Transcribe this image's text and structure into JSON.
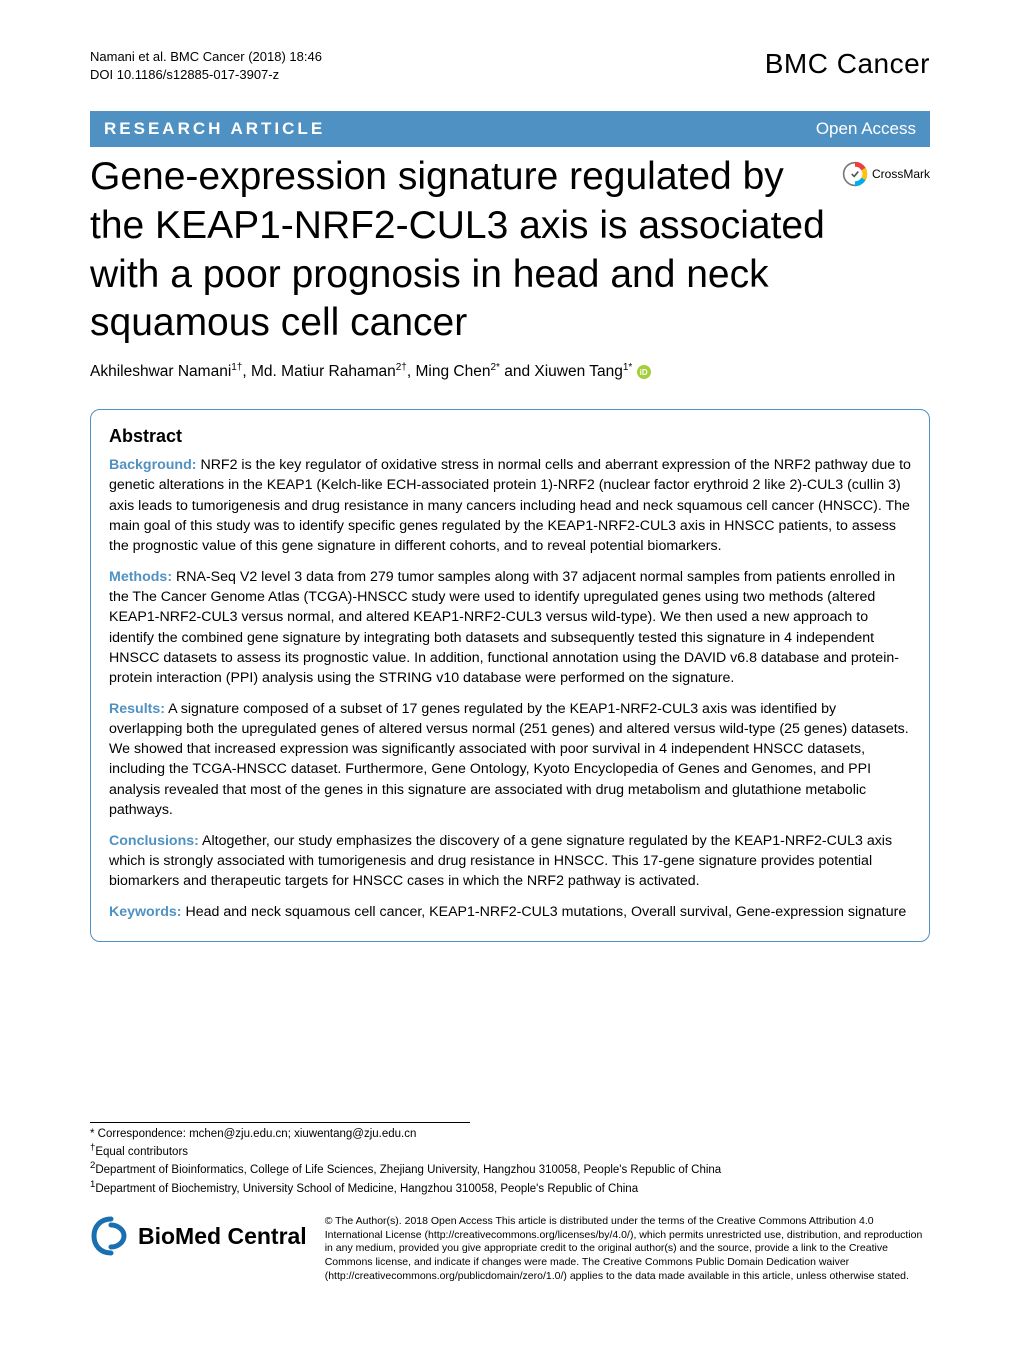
{
  "header": {
    "citation_line1": "Namani et al. BMC Cancer  (2018) 18:46 ",
    "citation_line2": "DOI 10.1186/s12885-017-3907-z",
    "journal_name": "BMC Cancer"
  },
  "section_bar": {
    "left": "RESEARCH ARTICLE",
    "right": "Open Access"
  },
  "crossmark_label": "CrossMark",
  "title": "Gene-expression signature regulated by the KEAP1-NRF2-CUL3 axis is associated with a poor prognosis in head and neck squamous cell cancer",
  "authors_html": "Akhileshwar Namani<sup>1†</sup>, Md. Matiur Rahaman<sup>2†</sup>, Ming Chen<sup>2*</sup> and Xiuwen Tang<sup>1*</sup>",
  "abstract": {
    "heading": "Abstract",
    "background_label": "Background:",
    "background_text": " NRF2 is the key regulator of oxidative stress in normal cells and aberrant expression of the NRF2 pathway due to genetic alterations in the KEAP1 (Kelch-like ECH-associated protein 1)-NRF2 (nuclear factor erythroid 2 like 2)-CUL3 (cullin 3) axis leads to tumorigenesis and drug resistance in many cancers including head and neck squamous cell cancer (HNSCC). The main goal of this study was to identify specific genes regulated by the KEAP1-NRF2-CUL3 axis in HNSCC patients, to assess the prognostic value of this gene signature in different cohorts, and to reveal potential biomarkers.",
    "methods_label": "Methods:",
    "methods_text": " RNA-Seq V2 level 3 data from 279 tumor samples along with 37 adjacent normal samples from patients enrolled in the The Cancer Genome Atlas (TCGA)-HNSCC study were used to identify upregulated genes using two methods (altered KEAP1-NRF2-CUL3 versus normal, and altered KEAP1-NRF2-CUL3 versus wild-type). We then used a new approach to identify the combined gene signature by integrating both datasets and subsequently tested this signature in 4 independent HNSCC datasets to assess its prognostic value. In addition, functional annotation using the DAVID v6.8 database and protein-protein interaction (PPI) analysis using the STRING v10 database were performed on the signature.",
    "results_label": "Results:",
    "results_text": " A signature composed of a subset of 17 genes regulated by the KEAP1-NRF2-CUL3 axis was identified by overlapping both the upregulated genes of altered versus normal (251 genes) and altered versus wild-type (25 genes) datasets. We showed that increased expression was significantly associated with poor survival in 4 independent HNSCC datasets, including the TCGA-HNSCC dataset. Furthermore, Gene Ontology, Kyoto Encyclopedia of Genes and Genomes, and PPI analysis revealed that most of the genes in this signature are associated with drug metabolism and glutathione metabolic pathways.",
    "conclusions_label": "Conclusions:",
    "conclusions_text": " Altogether, our study emphasizes the discovery of a gene signature regulated by the KEAP1-NRF2-CUL3 axis which is strongly associated with tumorigenesis and drug resistance in HNSCC. This 17-gene signature provides potential biomarkers and therapeutic targets for HNSCC cases in which the NRF2 pathway is activated.",
    "keywords_label": "Keywords:",
    "keywords_text": " Head and neck squamous cell cancer, KEAP1-NRF2-CUL3 mutations, Overall survival, Gene-expression signature"
  },
  "footer": {
    "correspondence": "* Correspondence: mchen@zju.edu.cn; xiuwentang@zju.edu.cn",
    "equal": "†Equal contributors",
    "aff2": "2Department of Bioinformatics, College of Life Sciences, Zhejiang University, Hangzhou 310058, People's Republic of China",
    "aff1": "1Department of Biochemistry, University School of Medicine, Hangzhou 310058, People's Republic of China",
    "bmc_logo_text": "BioMed Central",
    "license": "© The Author(s). 2018 Open Access This article is distributed under the terms of the Creative Commons Attribution 4.0 International License (http://creativecommons.org/licenses/by/4.0/), which permits unrestricted use, distribution, and reproduction in any medium, provided you give appropriate credit to the original author(s) and the source, provide a link to the Creative Commons license, and indicate if changes were made. The Creative Commons Public Domain Dedication waiver (http://creativecommons.org/publicdomain/zero/1.0/) applies to the data made available in this article, unless otherwise stated."
  },
  "colors": {
    "accent": "#5091c3",
    "text": "#000000",
    "orcid": "#a6ce39",
    "crossmark_red": "#ef3e42",
    "crossmark_yellow": "#ffc20e",
    "crossmark_blue": "#00aeef",
    "bmc_swirl": "#1a6fb0"
  }
}
